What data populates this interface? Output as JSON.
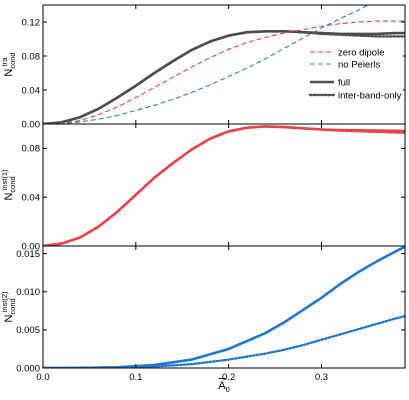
{
  "chart_data": [
    {
      "type": "line",
      "panel": "top",
      "ylabel_main": "N",
      "ylabel_sub": "cond",
      "ylabel_sup": "tra",
      "xlim": [
        0.0,
        0.39
      ],
      "ylim": [
        0.0,
        0.14
      ],
      "yticks": [
        "0.00",
        "0.04",
        "0.08",
        "0.12"
      ],
      "series": [
        {
          "name": "full",
          "color": "#4d4d4d",
          "style": "solid",
          "x": [
            0.0,
            0.02,
            0.04,
            0.06,
            0.08,
            0.1,
            0.12,
            0.14,
            0.16,
            0.18,
            0.2,
            0.22,
            0.24,
            0.26,
            0.28,
            0.3,
            0.32,
            0.34,
            0.36,
            0.38,
            0.39
          ],
          "y": [
            0.0,
            0.002,
            0.008,
            0.018,
            0.031,
            0.045,
            0.06,
            0.074,
            0.087,
            0.097,
            0.104,
            0.108,
            0.109,
            0.109,
            0.108,
            0.107,
            0.106,
            0.106,
            0.106,
            0.107,
            0.107
          ]
        },
        {
          "name": "inter-band-only",
          "color": "#4d4d4d",
          "style": "dotted",
          "x": [
            0.0,
            0.02,
            0.04,
            0.06,
            0.08,
            0.1,
            0.12,
            0.14,
            0.16,
            0.18,
            0.2,
            0.22,
            0.24,
            0.26,
            0.28,
            0.3,
            0.32,
            0.34,
            0.36,
            0.38,
            0.39
          ],
          "y": [
            0.0,
            0.002,
            0.008,
            0.018,
            0.031,
            0.045,
            0.06,
            0.074,
            0.087,
            0.097,
            0.104,
            0.108,
            0.109,
            0.109,
            0.108,
            0.106,
            0.105,
            0.104,
            0.103,
            0.103,
            0.103
          ]
        },
        {
          "name": "zero dipole",
          "color": "#e8434a",
          "style": "dashed",
          "x": [
            0.0,
            0.02,
            0.04,
            0.06,
            0.08,
            0.1,
            0.12,
            0.14,
            0.16,
            0.18,
            0.2,
            0.22,
            0.24,
            0.26,
            0.28,
            0.3,
            0.32,
            0.34,
            0.36,
            0.38,
            0.39
          ],
          "y": [
            0.0,
            0.001,
            0.004,
            0.011,
            0.02,
            0.031,
            0.043,
            0.055,
            0.067,
            0.078,
            0.088,
            0.096,
            0.102,
            0.107,
            0.111,
            0.115,
            0.118,
            0.12,
            0.121,
            0.121,
            0.121
          ]
        },
        {
          "name": "no Peierls",
          "color": "#2e7fd8",
          "style": "dashed",
          "x": [
            0.0,
            0.02,
            0.04,
            0.06,
            0.08,
            0.1,
            0.12,
            0.14,
            0.16,
            0.18,
            0.2,
            0.22,
            0.24,
            0.26,
            0.28,
            0.3,
            0.32,
            0.34,
            0.35
          ],
          "y": [
            0.0,
            0.0006,
            0.0025,
            0.0057,
            0.01,
            0.016,
            0.022,
            0.029,
            0.037,
            0.046,
            0.056,
            0.066,
            0.077,
            0.089,
            0.101,
            0.113,
            0.124,
            0.134,
            0.14
          ]
        }
      ]
    },
    {
      "type": "line",
      "panel": "middle",
      "ylabel_main": "N",
      "ylabel_sub": "cond",
      "ylabel_sup": "inst(1)",
      "xlim": [
        0.0,
        0.39
      ],
      "ylim": [
        0.0,
        0.1
      ],
      "yticks": [
        "0.00",
        "0.04",
        "0.08"
      ],
      "series": [
        {
          "name": "full",
          "color": "#e8434a",
          "style": "solid",
          "x": [
            0.0,
            0.02,
            0.04,
            0.06,
            0.08,
            0.1,
            0.12,
            0.14,
            0.16,
            0.18,
            0.2,
            0.22,
            0.24,
            0.26,
            0.28,
            0.3,
            0.32,
            0.34,
            0.36,
            0.38,
            0.39
          ],
          "y": [
            0.0,
            0.002,
            0.007,
            0.016,
            0.028,
            0.042,
            0.056,
            0.068,
            0.079,
            0.088,
            0.094,
            0.097,
            0.098,
            0.0975,
            0.0965,
            0.0955,
            0.095,
            0.0948,
            0.0946,
            0.0944,
            0.0942
          ]
        },
        {
          "name": "inter-band-only",
          "color": "#e8434a",
          "style": "dotted",
          "x": [
            0.0,
            0.02,
            0.04,
            0.06,
            0.08,
            0.1,
            0.12,
            0.14,
            0.16,
            0.18,
            0.2,
            0.22,
            0.24,
            0.26,
            0.28,
            0.3,
            0.32,
            0.34,
            0.36,
            0.38,
            0.39
          ],
          "y": [
            0.0,
            0.002,
            0.007,
            0.016,
            0.028,
            0.042,
            0.056,
            0.068,
            0.079,
            0.088,
            0.094,
            0.097,
            0.098,
            0.0975,
            0.0965,
            0.0955,
            0.0945,
            0.094,
            0.0935,
            0.093,
            0.0928
          ]
        }
      ]
    },
    {
      "type": "line",
      "panel": "bottom",
      "ylabel_main": "N",
      "ylabel_sub": "cond",
      "ylabel_sup": "inst(2)",
      "xlabel": "A",
      "xlabel_sub": "0",
      "xlim": [
        0.0,
        0.39
      ],
      "ylim": [
        0.0,
        0.016
      ],
      "yticks": [
        "0.000",
        "0.005",
        "0.010",
        "0.015"
      ],
      "xticks": [
        "0.0",
        "0.1",
        "0.2",
        "0.3"
      ],
      "series": [
        {
          "name": "full",
          "color": "#1f77d0",
          "style": "solid",
          "x": [
            0.0,
            0.04,
            0.08,
            0.12,
            0.16,
            0.2,
            0.24,
            0.26,
            0.28,
            0.3,
            0.32,
            0.34,
            0.36,
            0.38,
            0.39
          ],
          "y": [
            0.0,
            1e-05,
            0.0001,
            0.0004,
            0.0011,
            0.0025,
            0.0046,
            0.006,
            0.0076,
            0.0092,
            0.011,
            0.0126,
            0.014,
            0.0153,
            0.0159
          ]
        },
        {
          "name": "inter-band-only",
          "color": "#1f77d0",
          "style": "dotted",
          "x": [
            0.0,
            0.04,
            0.08,
            0.12,
            0.16,
            0.2,
            0.24,
            0.26,
            0.28,
            0.3,
            0.32,
            0.34,
            0.36,
            0.38,
            0.39
          ],
          "y": [
            0.0,
            1e-05,
            6e-05,
            0.0002,
            0.0005,
            0.0011,
            0.0019,
            0.0024,
            0.003,
            0.0037,
            0.0044,
            0.0051,
            0.0058,
            0.0065,
            0.0068
          ]
        }
      ]
    }
  ],
  "legends": {
    "top": [
      {
        "label": "zero dipole",
        "color": "#e8434a",
        "style": "dashed"
      },
      {
        "label": "no Peierls",
        "color": "#2e7fd8",
        "style": "dashed"
      },
      {
        "label": "full",
        "color": "#4d4d4d",
        "style": "solid"
      },
      {
        "label": "inter-band-only",
        "color": "#4d4d4d",
        "style": "dotted"
      }
    ]
  }
}
